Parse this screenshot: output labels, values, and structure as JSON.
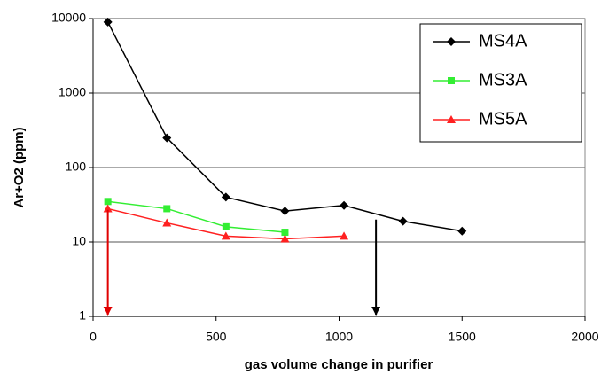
{
  "chart_data": {
    "type": "line",
    "log_y": true,
    "grid": "y",
    "x_label": "gas volume change in purifier",
    "y_label": "Ar+O2 (ppm)",
    "xlim": [
      0,
      2000
    ],
    "xticks": [
      0,
      500,
      1000,
      1500,
      2000
    ],
    "ylim": [
      1,
      10000
    ],
    "yticks": [
      1,
      10,
      100,
      1000,
      10000
    ],
    "legend": "upper right",
    "series": [
      {
        "name": "MS4A",
        "color": "#000000",
        "marker": "diamond",
        "x": [
          60,
          300,
          540,
          780,
          1020,
          1260,
          1500
        ],
        "values": [
          9000,
          250,
          40,
          26,
          31,
          19,
          14
        ]
      },
      {
        "name": "MS3A",
        "color": "#33ee33",
        "marker": "square",
        "x": [
          60,
          300,
          540,
          780
        ],
        "values": [
          35,
          28,
          16,
          13.5
        ]
      },
      {
        "name": "MS5A",
        "color": "#ff2020",
        "marker": "triangle",
        "x": [
          60,
          300,
          540,
          780,
          1020
        ],
        "values": [
          28,
          18,
          12,
          11,
          12
        ]
      }
    ],
    "arrows": [
      {
        "x": 60,
        "y_start": 27,
        "y_end": 1,
        "color": "#e00000"
      },
      {
        "x": 1150,
        "y_start": 20,
        "y_end": 1,
        "color": "#000000"
      }
    ]
  }
}
